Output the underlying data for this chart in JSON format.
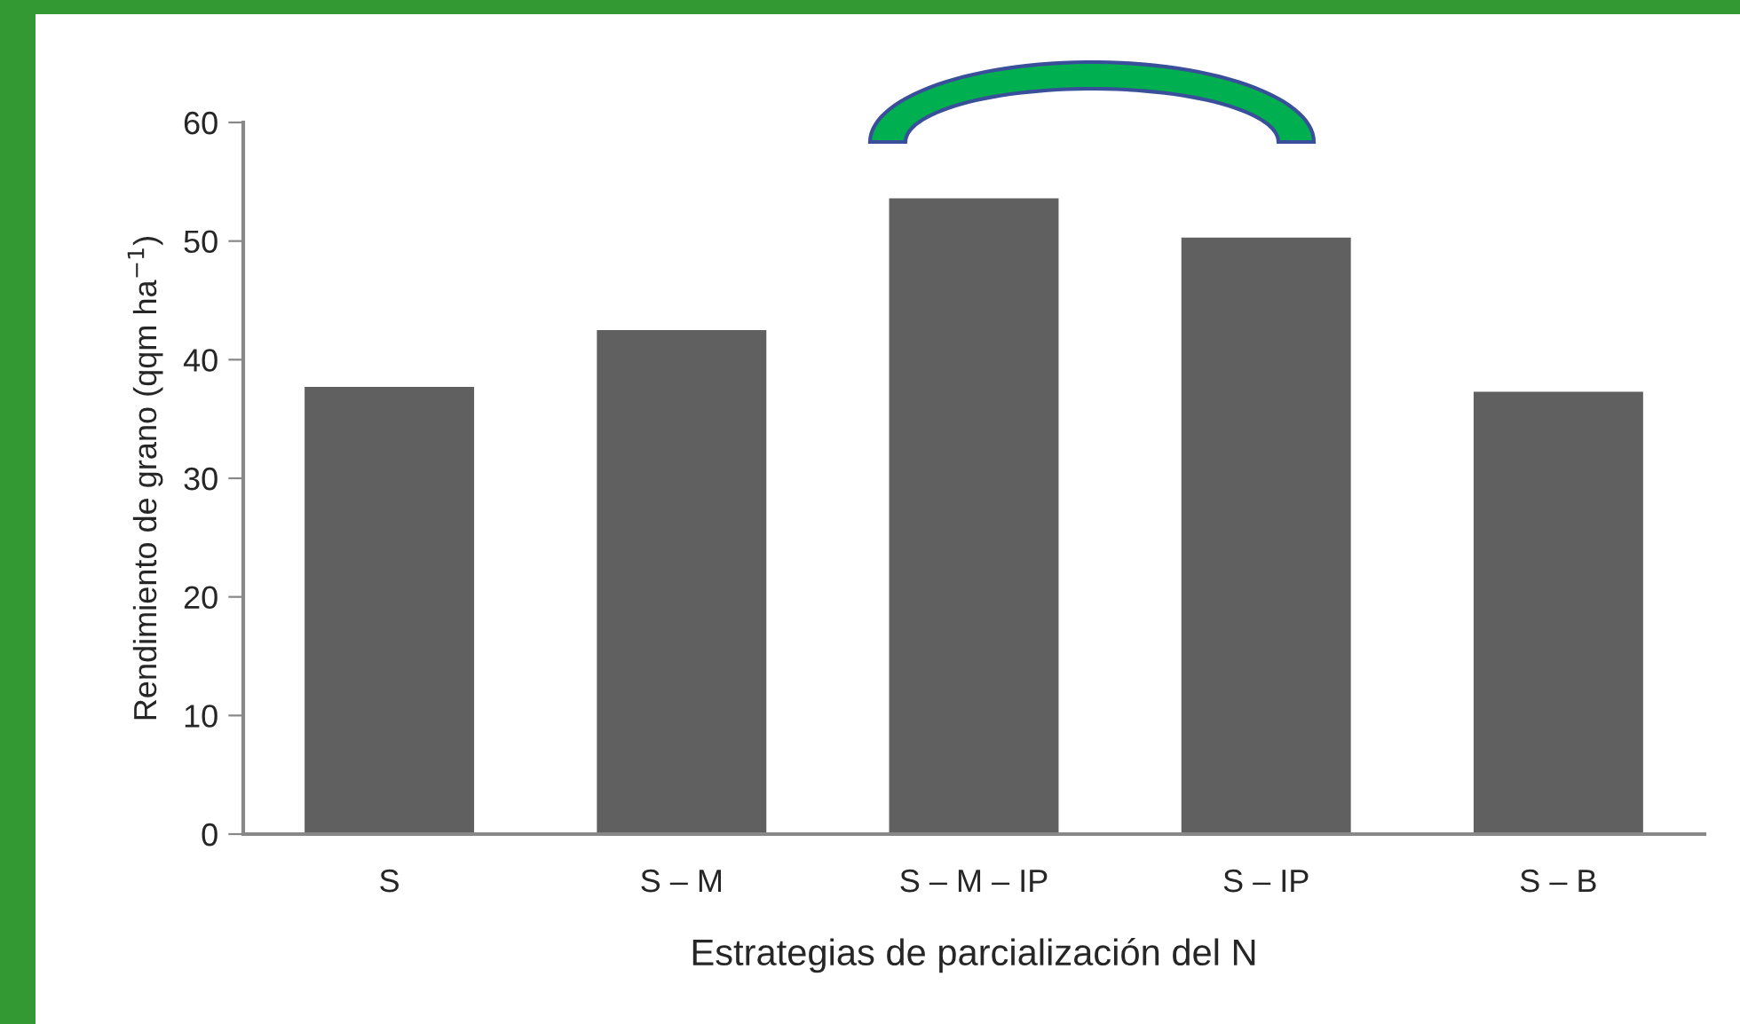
{
  "chart_data": {
    "type": "bar",
    "xlabel": "Estrategias de parcialización del N",
    "ylabel": "Rendimiento de grano (qqm ha$^{−1}$)",
    "categories": [
      "S",
      "S – M",
      "S – M – IP",
      "S – IP",
      "S – B"
    ],
    "values": [
      37.7,
      42.5,
      53.6,
      50.3,
      37.3
    ],
    "color": "#606060",
    "ylim": [
      0,
      60
    ],
    "yticks": [
      0,
      10,
      20,
      30,
      40,
      50,
      60
    ],
    "grid": false
  }
}
